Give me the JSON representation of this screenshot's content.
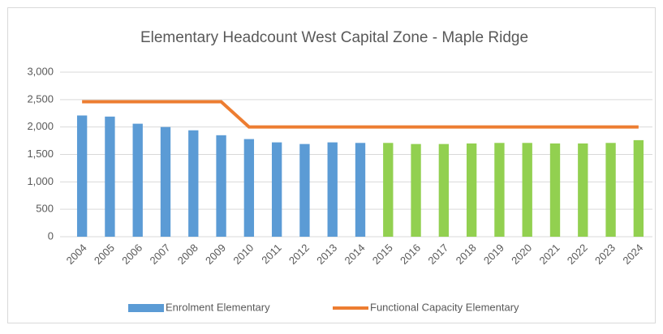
{
  "chart_data": {
    "type": "bar-line",
    "title": "Elementary Headcount West Capital Zone - Maple Ridge",
    "categories": [
      "2004",
      "2005",
      "2006",
      "2007",
      "2008",
      "2009",
      "2010",
      "2011",
      "2012",
      "2013",
      "2014",
      "2015",
      "2016",
      "2017",
      "2018",
      "2019",
      "2020",
      "2021",
      "2022",
      "2023",
      "2024"
    ],
    "series": [
      {
        "name": "Enrolment Elementary",
        "type": "bar",
        "color": "#5b9bd5",
        "colors": [
          "#5b9bd5",
          "#5b9bd5",
          "#5b9bd5",
          "#5b9bd5",
          "#5b9bd5",
          "#5b9bd5",
          "#5b9bd5",
          "#5b9bd5",
          "#5b9bd5",
          "#5b9bd5",
          "#5b9bd5",
          "#92d050",
          "#92d050",
          "#92d050",
          "#92d050",
          "#92d050",
          "#92d050",
          "#92d050",
          "#92d050",
          "#92d050",
          "#92d050"
        ],
        "values": [
          2210,
          2190,
          2060,
          2000,
          1940,
          1850,
          1780,
          1720,
          1690,
          1720,
          1710,
          1710,
          1690,
          1690,
          1700,
          1710,
          1710,
          1700,
          1700,
          1710,
          1760
        ]
      },
      {
        "name": "Functional Capacity Elementary",
        "type": "line",
        "color": "#ed7d31",
        "values": [
          2460,
          2460,
          2460,
          2460,
          2460,
          2460,
          2000,
          2000,
          2000,
          2000,
          2000,
          2000,
          2000,
          2000,
          2000,
          2000,
          2000,
          2000,
          2000,
          2000,
          2000
        ]
      }
    ],
    "ylim": [
      0,
      3000
    ],
    "yticks": [
      0,
      500,
      {
        "value": 1000,
        "label": "1,000"
      },
      {
        "value": 1500,
        "label": "1,500"
      },
      {
        "value": 2000,
        "label": "2,000"
      },
      {
        "value": 2500,
        "label": "2,500"
      },
      {
        "value": 3000,
        "label": "3,000"
      }
    ],
    "grid": true,
    "legend": "bottom"
  }
}
